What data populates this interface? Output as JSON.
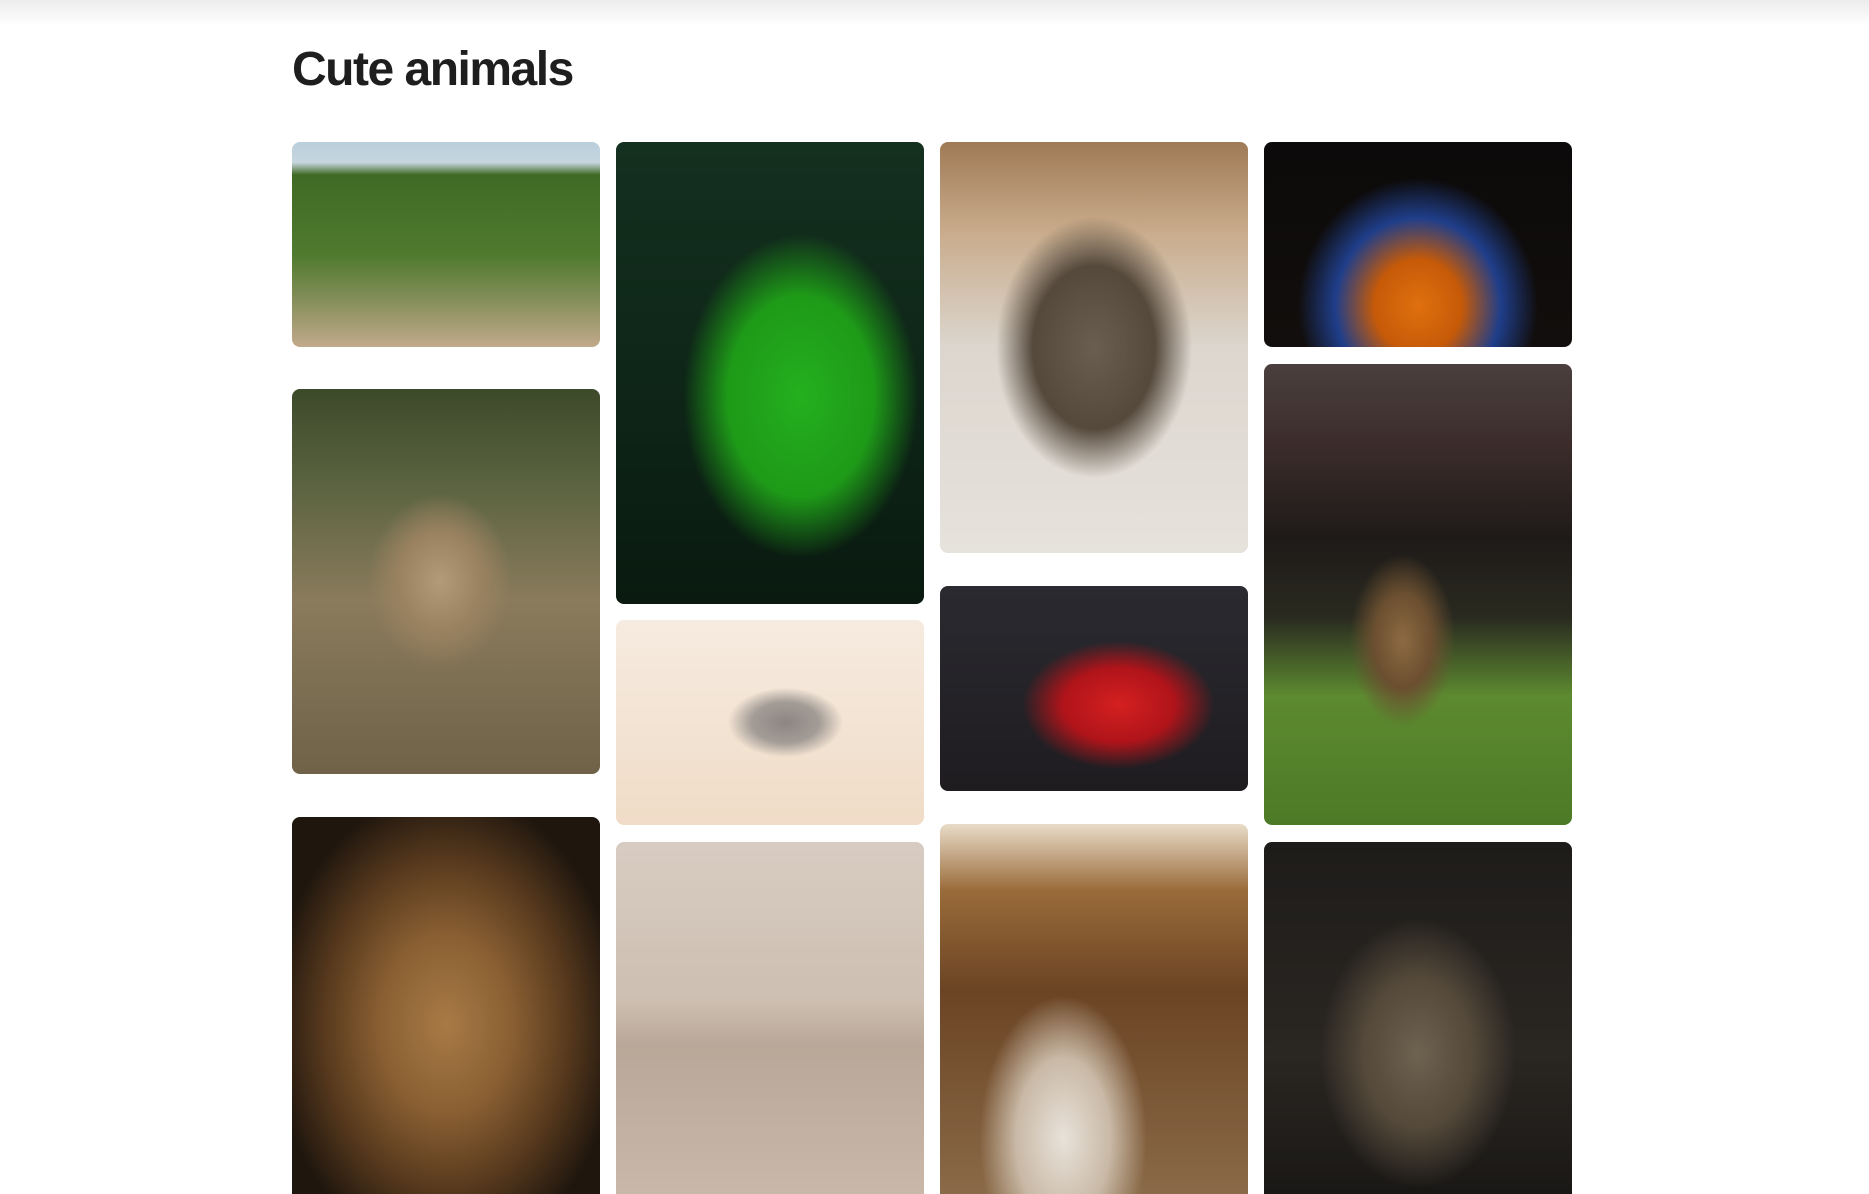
{
  "header": {
    "title": "Cute animals"
  }
}
